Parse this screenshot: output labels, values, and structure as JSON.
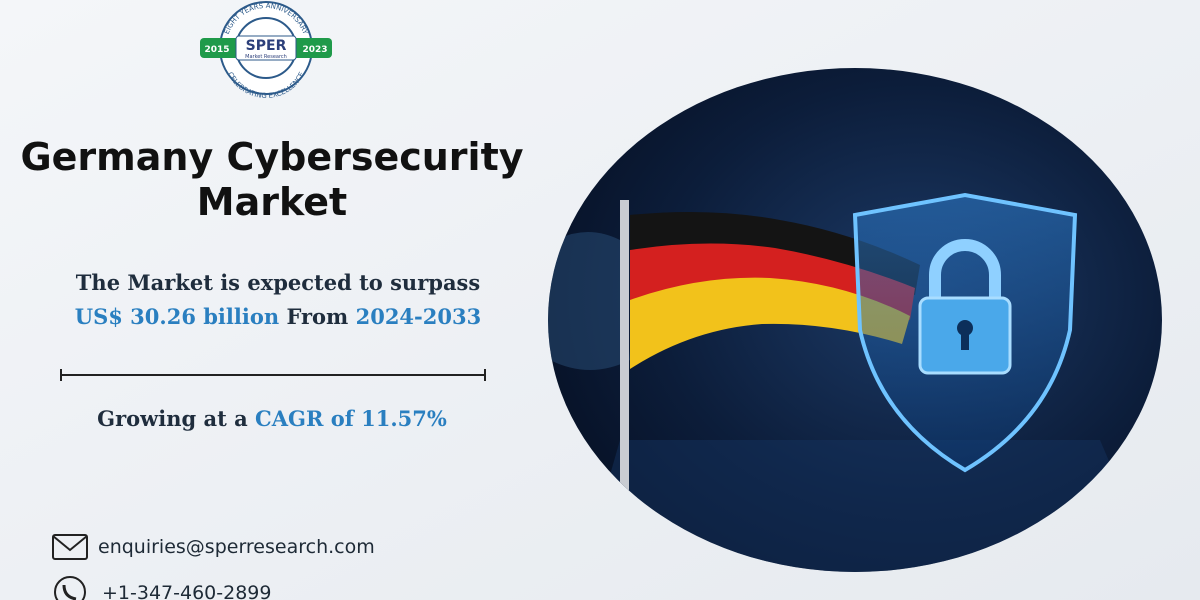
{
  "logo": {
    "arc_top": "EIGHT YEARS ANNIVERSARY",
    "year_start": "2015",
    "brand": "SPER",
    "brand_sub": "Market Research",
    "year_end": "2023",
    "arc_bottom": "CELEBRATING EXCELLENCE"
  },
  "title": {
    "line1": "Germany Cybersecurity",
    "line2": "Market"
  },
  "forecast": {
    "line1": "The Market is expected to surpass",
    "value": "US$ 30.26 billion",
    "joiner": "From",
    "period": "2024-2033"
  },
  "growth": {
    "lead": "Growing at a",
    "cagr": "CAGR of 11.57%"
  },
  "contact": {
    "email": "enquiries@sperresearch.com",
    "phone": "+1-347-460-2899"
  }
}
